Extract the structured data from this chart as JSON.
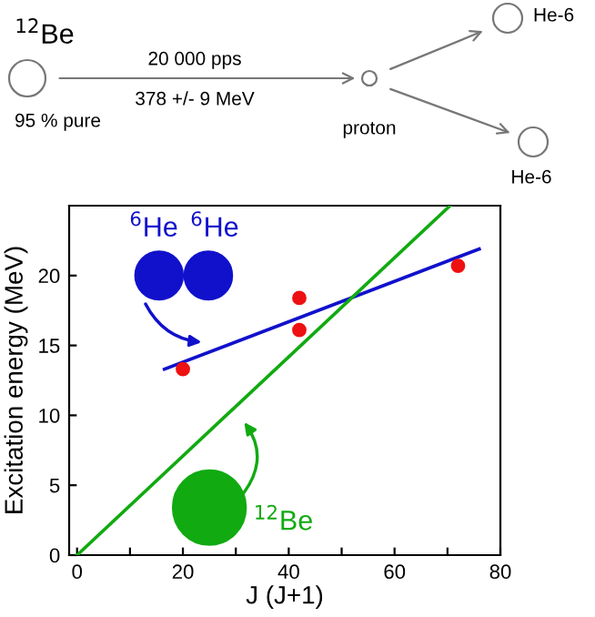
{
  "chart_data": {
    "type": "scatter",
    "xlabel": "J (J+1)",
    "ylabel": "Excitation energy (MeV)",
    "xlim": [
      -1.5,
      80
    ],
    "ylim": [
      0,
      25
    ],
    "xticks": [
      0,
      {
        "value": 10,
        "label": null
      },
      20,
      {
        "value": 30,
        "label": null
      },
      40,
      {
        "value": 50,
        "label": null
      },
      60,
      {
        "value": 70,
        "label": null
      },
      80
    ],
    "yticks": [
      0,
      5,
      10,
      15,
      20
    ],
    "grid": false,
    "marker": "circle",
    "series": [
      {
        "color": "#ee1111",
        "x": [
          20,
          42,
          42,
          72
        ],
        "values": [
          13.3,
          18.4,
          16.1,
          20.7
        ]
      },
      {
        "type": "line",
        "color": "#1111cc",
        "x": [
          16.5,
          76
        ],
        "values": [
          13.3,
          21.9
        ],
        "marker": "none"
      },
      {
        "type": "line",
        "color": "#11aa11",
        "x": [
          0,
          70.5
        ],
        "values": [
          0,
          25
        ],
        "marker": "none"
      }
    ],
    "annotations": [
      "$^{12}$Be",
      "20 000 pps",
      "378 +/- 9 MeV",
      "95 % pure",
      "proton",
      "He-6",
      "He-6",
      "$^{6}$He",
      "$^{6}$He",
      "$^{12}$Be"
    ]
  }
}
